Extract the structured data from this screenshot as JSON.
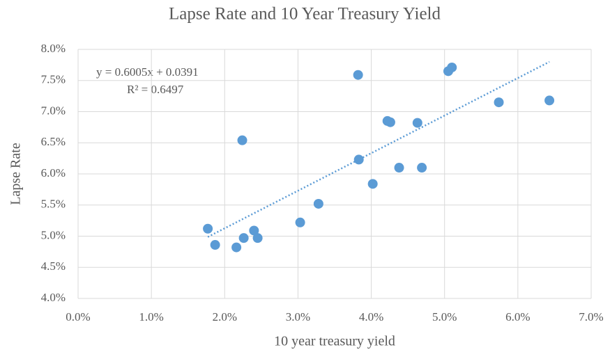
{
  "chart_data": {
    "type": "scatter",
    "title": "Lapse Rate and 10 Year Treasury Yield",
    "xlabel": "10 year treasury yield",
    "ylabel": "Lapse Rate",
    "annotations": [
      "y = 0.6005x + 0.0391",
      "R² = 0.6497"
    ],
    "series": [
      {
        "color": "#5b9bd5",
        "x": [
          1.77,
          1.87,
          2.16,
          2.24,
          2.26,
          2.4,
          2.45,
          3.03,
          3.28,
          3.82,
          3.83,
          4.02,
          4.22,
          4.26,
          4.38,
          4.63,
          4.69,
          5.05,
          5.1,
          5.74,
          6.43
        ],
        "values": [
          5.12,
          4.86,
          4.82,
          6.54,
          4.97,
          5.09,
          4.97,
          5.22,
          5.52,
          7.59,
          6.23,
          5.84,
          6.85,
          6.83,
          6.1,
          6.82,
          6.1,
          7.65,
          7.71,
          7.15,
          7.18
        ]
      }
    ],
    "trendline": {
      "color": "#5b9bd5",
      "style": "dotted"
    },
    "xlim": [
      0,
      7
    ],
    "ylim": [
      4,
      8
    ],
    "xticks": [
      {
        "value": 0,
        "label": "0.0%"
      },
      {
        "value": 1,
        "label": "1.0%"
      },
      {
        "value": 2,
        "label": "2.0%"
      },
      {
        "value": 3,
        "label": "3.0%"
      },
      {
        "value": 4,
        "label": "4.0%"
      },
      {
        "value": 5,
        "label": "5.0%"
      },
      {
        "value": 6,
        "label": "6.0%"
      },
      {
        "value": 7,
        "label": "7.0%"
      }
    ],
    "yticks": [
      {
        "value": 4,
        "label": "4.0%"
      },
      {
        "value": 4.5,
        "label": "4.5%"
      },
      {
        "value": 5,
        "label": "5.0%"
      },
      {
        "value": 5.5,
        "label": "5.5%"
      },
      {
        "value": 6,
        "label": "6.0%"
      },
      {
        "value": 6.5,
        "label": "6.5%"
      },
      {
        "value": 7,
        "label": "7.0%"
      },
      {
        "value": 7.5,
        "label": "7.5%"
      },
      {
        "value": 8,
        "label": "8.0%"
      }
    ],
    "grid": true
  }
}
